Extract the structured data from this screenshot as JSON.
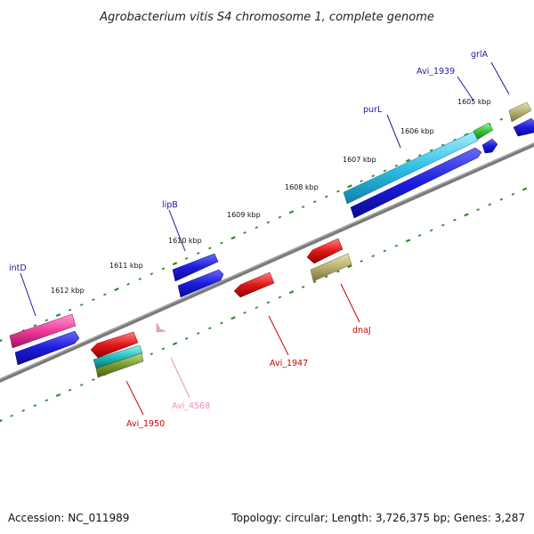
{
  "title": "Agrobacterium vitis S4 chromosome 1, complete genome",
  "footer": {
    "accession": "Accession: NC_011989",
    "summary": "Topology: circular; Length: 3,726,375 bp; Genes: 3,287"
  },
  "colors": {
    "forward_label": "#1a1aa6",
    "reverse_label": "#cc0000",
    "pseudo_label": "#f08cc0",
    "backbone": "#808080",
    "tick": "#2e8b2e",
    "cds": "#1c1ce0",
    "pink": "#ee3a9a",
    "cyan": "#2ec0e6",
    "red": "#e01818",
    "khaki": "#b8b070",
    "green": "#36c436",
    "olive": "#7a9a30",
    "teal": "#20c0c0",
    "lightpink": "#f5a0c8"
  },
  "kbp_labels": [
    "1605 kbp",
    "1606 kbp",
    "1607 kbp",
    "1608 kbp",
    "1609 kbp",
    "1610 kbp",
    "1611 kbp",
    "1612 kbp"
  ],
  "gene_labels": {
    "grlA": "grlA",
    "avi1939": "Avi_1939",
    "purL": "purL",
    "lipB": "lipB",
    "intD": "intD",
    "dnaJ": "dnaJ",
    "avi1947": "Avi_1947",
    "avi4568": "Avi_4568",
    "avi1950": "Avi_1950"
  }
}
